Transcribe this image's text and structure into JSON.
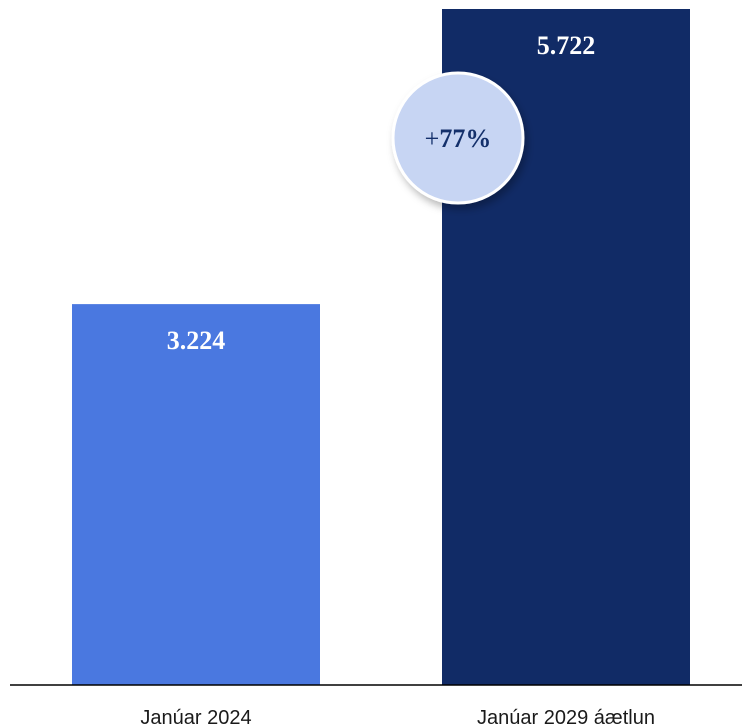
{
  "chart_data": {
    "type": "bar",
    "categories": [
      "Janúar 2024",
      "Janúar 2029 áætlun"
    ],
    "values": [
      3224,
      5722
    ],
    "data_labels": [
      "3.224",
      "5.722"
    ],
    "bar_colors": [
      "#4a78e0",
      "#112b66"
    ],
    "ylim": [
      0,
      5722
    ],
    "grid": false,
    "xlabel": "",
    "ylabel": "",
    "annotation": {
      "sign": "+",
      "value": "77%",
      "fill": "#c7d5f3",
      "text_color": "#14306b"
    }
  }
}
